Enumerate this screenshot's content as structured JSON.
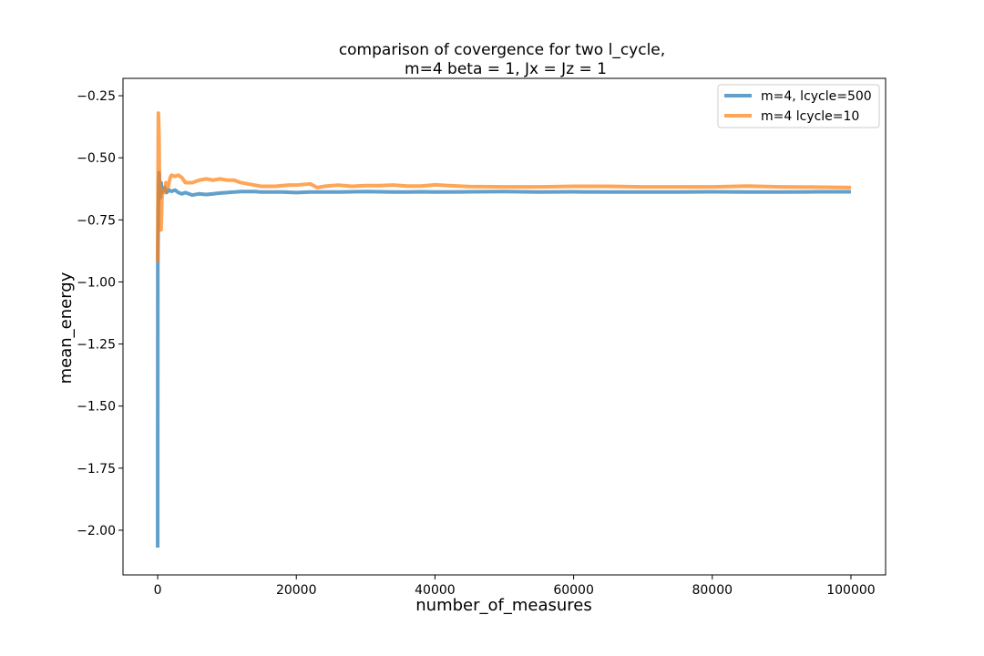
{
  "chart_data": {
    "type": "line",
    "title_lines": [
      "comparison of covergence for two l_cycle,",
      "m=4 beta = 1, Jx = Jz = 1"
    ],
    "xlabel": "number_of_measures",
    "ylabel": "mean_energy",
    "xlim": [
      -5000,
      105000
    ],
    "ylim": [
      -2.18,
      -0.18
    ],
    "xticks": [
      0,
      20000,
      40000,
      60000,
      80000,
      100000
    ],
    "xtick_labels": [
      "0",
      "20000",
      "40000",
      "60000",
      "80000",
      "100000"
    ],
    "yticks": [
      -2.0,
      -1.75,
      -1.5,
      -1.25,
      -1.0,
      -0.75,
      -0.5,
      -0.25
    ],
    "ytick_labels": [
      "−2.00",
      "−1.75",
      "−1.50",
      "−1.25",
      "−1.00",
      "−0.75",
      "−0.50",
      "−0.25"
    ],
    "grid": false,
    "legend_position": "top-right",
    "series": [
      {
        "name": "m=4, lcycle=500",
        "color": "#1f77b4",
        "x": [
          0,
          20,
          50,
          100,
          150,
          200,
          300,
          400,
          500,
          600,
          800,
          1000,
          1300,
          1600,
          2000,
          2500,
          3000,
          3500,
          4000,
          4500,
          5000,
          6000,
          7000,
          8000,
          9000,
          10000,
          11000,
          12000,
          13000,
          14000,
          15000,
          16000,
          18000,
          20000,
          22000,
          24000,
          26000,
          28000,
          30000,
          32000,
          34000,
          36000,
          38000,
          40000,
          45000,
          50000,
          55000,
          60000,
          65000,
          70000,
          75000,
          80000,
          85000,
          90000,
          95000,
          100000
        ],
        "y": [
          -2.07,
          -0.94,
          -0.84,
          -0.7,
          -0.6,
          -0.56,
          -0.62,
          -0.66,
          -0.6,
          -0.64,
          -0.63,
          -0.62,
          -0.64,
          -0.63,
          -0.635,
          -0.63,
          -0.64,
          -0.645,
          -0.64,
          -0.645,
          -0.65,
          -0.645,
          -0.648,
          -0.645,
          -0.642,
          -0.64,
          -0.638,
          -0.636,
          -0.636,
          -0.636,
          -0.638,
          -0.638,
          -0.638,
          -0.64,
          -0.638,
          -0.638,
          -0.638,
          -0.637,
          -0.636,
          -0.637,
          -0.638,
          -0.638,
          -0.637,
          -0.638,
          -0.637,
          -0.636,
          -0.638,
          -0.637,
          -0.638,
          -0.638,
          -0.638,
          -0.637,
          -0.638,
          -0.638,
          -0.637,
          -0.637
        ]
      },
      {
        "name": "m=4 lcycle=10",
        "color": "#ff7f0e",
        "x": [
          0,
          30,
          60,
          100,
          150,
          200,
          280,
          350,
          420,
          500,
          600,
          700,
          800,
          1000,
          1200,
          1500,
          1800,
          2000,
          2500,
          3000,
          3500,
          4000,
          4500,
          5000,
          6000,
          7000,
          8000,
          9000,
          10000,
          11000,
          12000,
          13000,
          14000,
          15000,
          16000,
          17000,
          18000,
          19000,
          20000,
          22000,
          23000,
          24000,
          26000,
          28000,
          30000,
          32000,
          34000,
          36000,
          38000,
          40000,
          42000,
          45000,
          50000,
          55000,
          60000,
          65000,
          70000,
          75000,
          80000,
          85000,
          90000,
          95000,
          100000
        ],
        "y": [
          -0.92,
          -0.7,
          -0.56,
          -0.32,
          -0.36,
          -0.42,
          -0.66,
          -0.7,
          -0.76,
          -0.79,
          -0.68,
          -0.63,
          -0.64,
          -0.64,
          -0.6,
          -0.62,
          -0.58,
          -0.57,
          -0.575,
          -0.57,
          -0.58,
          -0.6,
          -0.6,
          -0.6,
          -0.59,
          -0.585,
          -0.59,
          -0.585,
          -0.59,
          -0.59,
          -0.6,
          -0.605,
          -0.61,
          -0.615,
          -0.615,
          -0.615,
          -0.612,
          -0.61,
          -0.61,
          -0.605,
          -0.62,
          -0.615,
          -0.61,
          -0.615,
          -0.612,
          -0.612,
          -0.61,
          -0.614,
          -0.614,
          -0.609,
          -0.612,
          -0.616,
          -0.617,
          -0.617,
          -0.615,
          -0.615,
          -0.617,
          -0.617,
          -0.617,
          -0.614,
          -0.617,
          -0.618,
          -0.62
        ]
      }
    ]
  }
}
